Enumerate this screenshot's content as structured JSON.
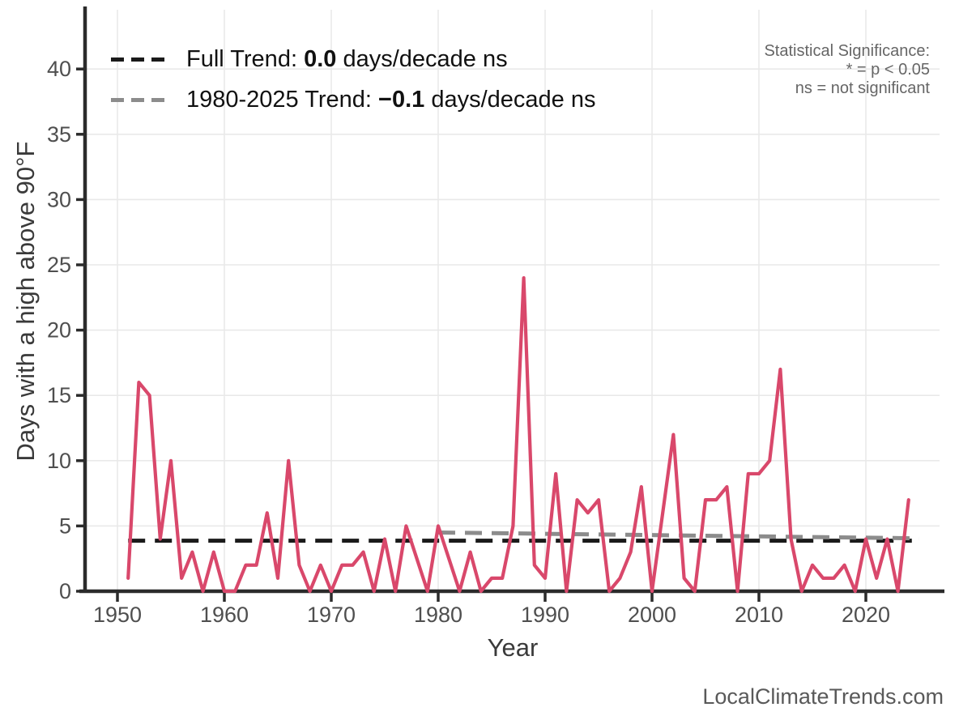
{
  "chart_data": {
    "type": "line",
    "title": "",
    "xlabel": "Year",
    "ylabel": "Days with a high above 90°F",
    "x_ticks": [
      1950,
      1960,
      1970,
      1980,
      1990,
      2000,
      2010,
      2020
    ],
    "y_ticks": [
      0,
      5,
      10,
      15,
      20,
      25,
      30,
      35,
      40
    ],
    "xlim": [
      1947,
      2027
    ],
    "ylim": [
      0,
      44
    ],
    "grid": true,
    "series": [
      {
        "name": "Days with a high above 90°F per year",
        "color": "#d9486b",
        "x": [
          1951,
          1952,
          1953,
          1954,
          1955,
          1956,
          1957,
          1958,
          1959,
          1960,
          1961,
          1962,
          1963,
          1964,
          1965,
          1966,
          1967,
          1968,
          1969,
          1970,
          1971,
          1972,
          1973,
          1974,
          1975,
          1976,
          1977,
          1978,
          1979,
          1980,
          1981,
          1982,
          1983,
          1984,
          1985,
          1986,
          1987,
          1988,
          1989,
          1990,
          1991,
          1992,
          1993,
          1994,
          1995,
          1996,
          1997,
          1998,
          1999,
          2000,
          2001,
          2002,
          2003,
          2004,
          2005,
          2006,
          2007,
          2008,
          2009,
          2010,
          2011,
          2012,
          2013,
          2014,
          2015,
          2016,
          2017,
          2018,
          2019,
          2020,
          2021,
          2022,
          2023,
          2024
        ],
        "values": [
          1,
          16,
          15,
          4,
          10,
          1,
          3,
          0,
          3,
          0,
          0,
          2,
          2,
          6,
          1,
          10,
          2,
          0,
          2,
          0,
          2,
          2,
          3,
          0,
          4,
          0,
          5,
          2.5,
          0,
          5,
          2.5,
          0,
          3,
          0,
          1,
          1,
          5,
          24,
          2,
          1,
          9,
          0,
          7,
          6,
          7,
          0,
          1,
          3,
          8,
          0,
          6,
          12,
          1,
          0,
          7,
          7,
          8,
          0,
          9,
          9,
          10,
          17,
          4,
          0,
          2,
          1,
          1,
          2,
          0,
          4,
          1,
          4,
          0,
          7
        ]
      }
    ],
    "trend_lines": [
      {
        "name": "Full Trend",
        "slope_label": "0.0 days/decade ns",
        "color": "#1a1a1a",
        "x": [
          1951,
          2024.3
        ],
        "values": [
          3.87,
          3.87
        ]
      },
      {
        "name": "1980-2025 Trend",
        "slope_label": "−0.1 days/decade ns",
        "color": "#8c8c8c",
        "x": [
          1980,
          2025
        ],
        "values": [
          4.5,
          4.05
        ]
      }
    ],
    "legend_position": "top-left",
    "colors": {
      "series": "#d9486b",
      "full_trend": "#1a1a1a",
      "recent_trend": "#8c8c8c",
      "grid": "#e9e9e9",
      "axis": "#2b2b2b",
      "tick_label": "#4f4f4f",
      "axis_title": "#3a3a3a"
    }
  },
  "legend": {
    "items": [
      {
        "prefix": "Full Trend: ",
        "value": "0.0",
        "suffix": " days/decade ns"
      },
      {
        "prefix": "1980-2025 Trend: ",
        "value": "−0.1",
        "suffix": " days/decade ns"
      }
    ]
  },
  "stat_note": {
    "line1": "Statistical Significance:",
    "line2": "* = p < 0.05",
    "line3": "ns = not significant"
  },
  "footer": {
    "site": "LocalClimateTrends.com"
  }
}
